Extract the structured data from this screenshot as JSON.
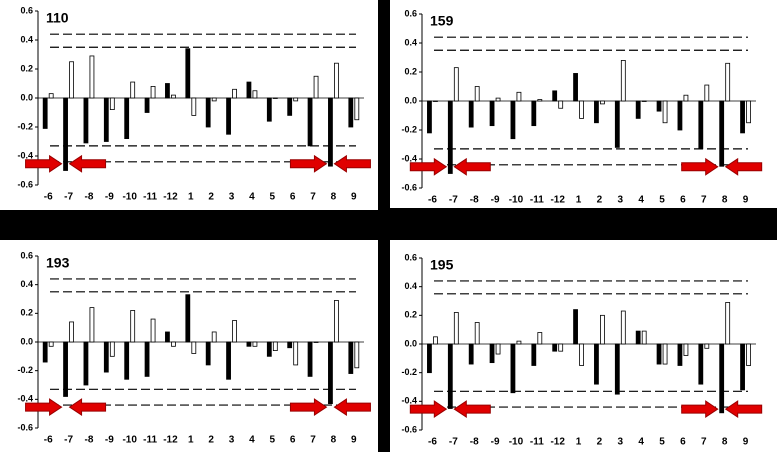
{
  "chart_data": [
    {
      "type": "bar",
      "title": "110",
      "categories": [
        "-6",
        "-7",
        "-8",
        "-9",
        "-10",
        "-11",
        "-12",
        "1",
        "2",
        "3",
        "4",
        "5",
        "6",
        "7",
        "8",
        "9"
      ],
      "series": [
        {
          "color": "#000000",
          "values": [
            -0.21,
            -0.5,
            -0.31,
            -0.3,
            -0.28,
            -0.1,
            0.1,
            0.34,
            -0.2,
            -0.25,
            0.11,
            -0.16,
            -0.12,
            -0.33,
            -0.47,
            -0.2
          ]
        },
        {
          "color": "#ffffff",
          "values": [
            0.03,
            0.25,
            0.29,
            -0.08,
            0.11,
            0.08,
            0.02,
            -0.12,
            -0.02,
            0.06,
            0.05,
            0.0,
            -0.02,
            0.15,
            0.24,
            -0.15
          ]
        }
      ],
      "reference_lines": [
        0.44,
        0.35,
        -0.33,
        -0.44
      ],
      "ylim": [
        -0.6,
        0.6
      ],
      "yticks": [
        0.6,
        0.4,
        0.2,
        {
          "value": 0,
          "label": "0.0"
        },
        -0.2,
        -0.4,
        -0.6
      ]
    },
    {
      "type": "bar",
      "title": "159",
      "categories": [
        "-6",
        "-7",
        "-8",
        "-9",
        "-10",
        "-11",
        "-12",
        "1",
        "2",
        "3",
        "4",
        "5",
        "6",
        "7",
        "8",
        "9"
      ],
      "series": [
        {
          "color": "#000000",
          "values": [
            -0.22,
            -0.5,
            -0.18,
            -0.17,
            -0.26,
            -0.17,
            0.07,
            0.19,
            -0.15,
            -0.32,
            -0.12,
            -0.07,
            -0.2,
            -0.33,
            -0.45,
            -0.22
          ]
        },
        {
          "color": "#ffffff",
          "values": [
            0.0,
            0.23,
            0.1,
            0.02,
            0.06,
            0.01,
            -0.05,
            -0.12,
            -0.02,
            0.28,
            0.0,
            -0.15,
            0.04,
            0.11,
            0.26,
            -0.15
          ]
        }
      ],
      "reference_lines": [
        0.44,
        0.35,
        -0.33,
        -0.44
      ],
      "ylim": [
        -0.6,
        0.6
      ],
      "yticks": [
        0.6,
        0.4,
        0.2,
        {
          "value": 0,
          "label": "0.0"
        },
        -0.2,
        -0.4,
        -0.6
      ]
    },
    {
      "type": "bar",
      "title": "193",
      "categories": [
        "-6",
        "-7",
        "-8",
        "-9",
        "-10",
        "-11",
        "-12",
        "1",
        "2",
        "3",
        "4",
        "5",
        "6",
        "7",
        "8",
        "9"
      ],
      "series": [
        {
          "color": "#000000",
          "values": [
            -0.14,
            -0.38,
            -0.3,
            -0.21,
            -0.26,
            -0.24,
            0.07,
            0.33,
            -0.16,
            -0.26,
            -0.03,
            -0.1,
            -0.04,
            -0.24,
            -0.43,
            -0.22
          ]
        },
        {
          "color": "#ffffff",
          "values": [
            -0.03,
            0.14,
            0.24,
            -0.1,
            0.22,
            0.16,
            -0.03,
            -0.08,
            0.07,
            0.15,
            -0.03,
            -0.06,
            -0.16,
            0.0,
            0.29,
            -0.18
          ]
        }
      ],
      "reference_lines": [
        0.44,
        0.35,
        -0.33,
        -0.44
      ],
      "ylim": [
        -0.6,
        0.6
      ],
      "yticks": [
        0.6,
        0.4,
        0.2,
        {
          "value": 0,
          "label": "0.0"
        },
        -0.2,
        -0.4,
        -0.6
      ]
    },
    {
      "type": "bar",
      "title": "195",
      "categories": [
        "-6",
        "-7",
        "-8",
        "-9",
        "-10",
        "-11",
        "-12",
        "1",
        "2",
        "3",
        "4",
        "5",
        "6",
        "7",
        "8",
        "9"
      ],
      "series": [
        {
          "color": "#000000",
          "values": [
            -0.2,
            -0.45,
            -0.14,
            -0.13,
            -0.34,
            -0.15,
            -0.05,
            0.24,
            -0.28,
            -0.35,
            0.09,
            -0.14,
            -0.15,
            -0.28,
            -0.48,
            -0.32
          ]
        },
        {
          "color": "#ffffff",
          "values": [
            0.05,
            0.22,
            0.15,
            -0.07,
            0.02,
            0.08,
            -0.05,
            -0.15,
            0.2,
            0.23,
            0.09,
            -0.14,
            -0.08,
            -0.03,
            0.29,
            -0.15
          ]
        }
      ],
      "reference_lines": [
        0.44,
        0.35,
        -0.33,
        -0.44
      ],
      "ylim": [
        -0.6,
        0.6
      ],
      "yticks": [
        0.6,
        0.4,
        0.2,
        {
          "value": 0,
          "label": "0.0"
        },
        -0.2,
        -0.4,
        -0.6
      ]
    }
  ]
}
